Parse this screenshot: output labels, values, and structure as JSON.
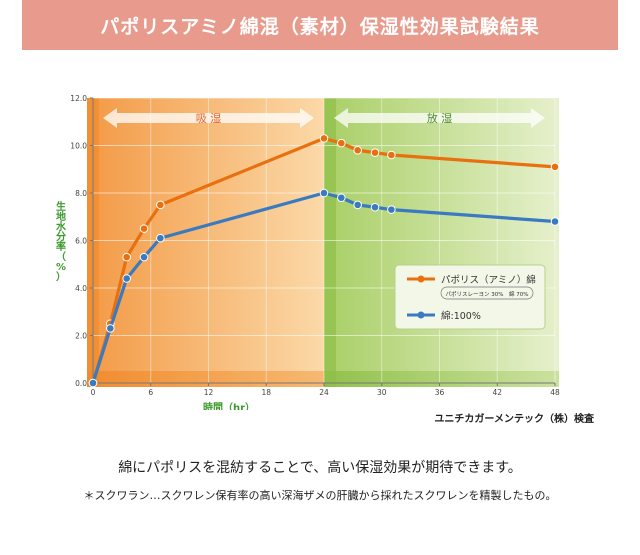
{
  "header": {
    "title": "パポリスアミノ綿混（素材）保湿性効果試験結果"
  },
  "chart_data": {
    "type": "line",
    "xlabel": "時間（hr）",
    "ylabel": "生地水分率（%）",
    "xlim": [
      0,
      48
    ],
    "ylim": [
      0,
      12
    ],
    "xticks": [
      0,
      6,
      12,
      18,
      24,
      30,
      36,
      42,
      48
    ],
    "yticks": [
      0.0,
      2.0,
      4.0,
      6.0,
      8.0,
      10.0,
      12.0
    ],
    "ytick_labels": [
      "0.0",
      "2.0",
      "4.0",
      "6.0",
      "8.0",
      "10.0",
      "12.0"
    ],
    "regions": [
      {
        "label": "吸 湿",
        "from": 0,
        "to": 24,
        "color": "#f7b56a"
      },
      {
        "label": "放 湿",
        "from": 24,
        "to": 48,
        "color": "#c3dc8e"
      }
    ],
    "series": [
      {
        "name": "パポリス（アミノ）綿",
        "sub": "パポリスレーヨン 30%　綿 70%",
        "color": "#e8700f",
        "x": [
          0,
          1.8,
          3.5,
          5.3,
          7,
          24,
          25.8,
          27.5,
          29.3,
          31,
          48
        ],
        "y": [
          0.0,
          2.5,
          5.3,
          6.5,
          7.5,
          10.3,
          10.1,
          9.8,
          9.7,
          9.6,
          9.1
        ]
      },
      {
        "name": "綿:100%",
        "color": "#3a7ac0",
        "x": [
          0,
          1.8,
          3.5,
          5.3,
          7,
          24,
          25.8,
          27.5,
          29.3,
          31,
          48
        ],
        "y": [
          0.0,
          2.3,
          4.4,
          5.3,
          6.1,
          8.0,
          7.8,
          7.5,
          7.4,
          7.3,
          6.8
        ]
      }
    ]
  },
  "source": "ユニチカガーメンテック（株）検査",
  "caption": "綿にパポリスを混紡することで、高い保湿効果が期待できます。",
  "footnote": "＊スクワラン…スクワレン保有率の高い深海ザメの肝臓から採れたスクワレンを精製したもの。"
}
